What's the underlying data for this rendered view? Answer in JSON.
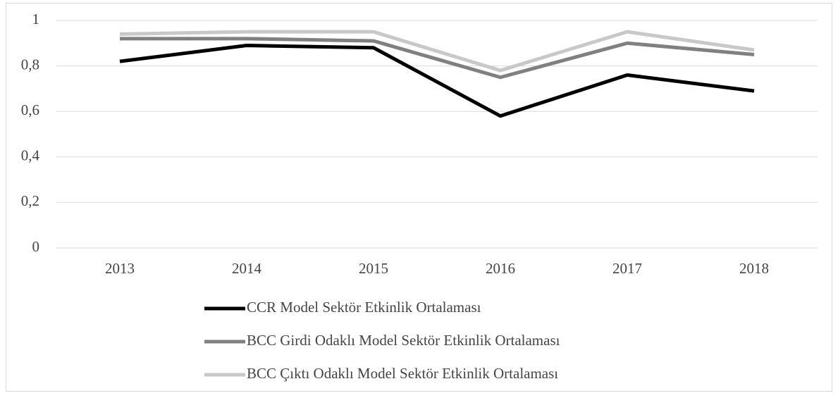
{
  "chart_data": {
    "type": "line",
    "categories": [
      "2013",
      "2014",
      "2015",
      "2016",
      "2017",
      "2018"
    ],
    "series": [
      {
        "name": "CCR Model Sektör Etkinlik Ortalaması",
        "color": "#000000",
        "values": [
          0.82,
          0.89,
          0.88,
          0.58,
          0.76,
          0.69
        ]
      },
      {
        "name": "BCC Girdi Odaklı Model Sektör Etkinlik Ortalaması",
        "color": "#808080",
        "values": [
          0.92,
          0.92,
          0.91,
          0.75,
          0.9,
          0.85
        ]
      },
      {
        "name": "BCC Çıktı Odaklı Model Sektör Etkinlik Ortalaması",
        "color": "#c8c8c8",
        "values": [
          0.94,
          0.95,
          0.95,
          0.78,
          0.95,
          0.87
        ]
      }
    ],
    "ylim": [
      0,
      1
    ],
    "yticks": [
      0,
      {
        "value": 0.2,
        "label": "0,2"
      },
      {
        "value": 0.4,
        "label": "0,4"
      },
      {
        "value": 0.6,
        "label": "0,6"
      },
      {
        "value": 0.8,
        "label": "0,8"
      },
      1
    ],
    "grid": true,
    "legend": "bottom"
  }
}
